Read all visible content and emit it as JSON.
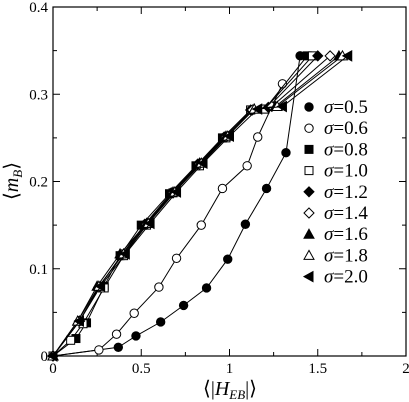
{
  "chart_data": {
    "type": "line",
    "xlabel": "⟨|H_EB|⟩",
    "ylabel": "⟨m_B⟩",
    "xlim": [
      0,
      2
    ],
    "ylim": [
      0,
      0.4
    ],
    "xticks": [
      "0",
      "0.5",
      "1",
      "1.5",
      "2"
    ],
    "yticks": [
      "0",
      "0.1",
      "0.2",
      "0.3",
      "0.4"
    ],
    "legend_position": "right",
    "series": [
      {
        "name": "σ=0.5",
        "marker": "filled-circle",
        "x": [
          0.0,
          0.37,
          0.47,
          0.61,
          0.74,
          0.87,
          0.99,
          1.09,
          1.21,
          1.32,
          1.4
        ],
        "y": [
          0.0,
          0.01,
          0.023,
          0.039,
          0.058,
          0.078,
          0.111,
          0.151,
          0.192,
          0.233,
          0.344
        ]
      },
      {
        "name": "σ=0.6",
        "marker": "open-circle",
        "x": [
          0.0,
          0.26,
          0.36,
          0.46,
          0.6,
          0.7,
          0.84,
          0.96,
          1.1,
          1.16,
          1.3
        ],
        "y": [
          0.0,
          0.007,
          0.025,
          0.049,
          0.079,
          0.112,
          0.15,
          0.192,
          0.218,
          0.251,
          0.312
        ]
      },
      {
        "name": "σ=0.8",
        "marker": "filled-square",
        "x": [
          0.0,
          0.13,
          0.19,
          0.29,
          0.38,
          0.5,
          0.66,
          0.81,
          0.96,
          1.12,
          1.2,
          1.44
        ],
        "y": [
          0.0,
          0.02,
          0.038,
          0.08,
          0.115,
          0.15,
          0.186,
          0.218,
          0.25,
          0.282,
          0.283,
          0.344
        ]
      },
      {
        "name": "σ=1.0",
        "marker": "open-square",
        "x": [
          0.0,
          0.1,
          0.17,
          0.29,
          0.4,
          0.53,
          0.68,
          0.83,
          0.98,
          1.12,
          1.2,
          1.47
        ],
        "y": [
          0.0,
          0.018,
          0.037,
          0.078,
          0.115,
          0.15,
          0.187,
          0.218,
          0.25,
          0.282,
          0.283,
          0.344
        ]
      },
      {
        "name": "σ=1.2",
        "marker": "filled-diamond",
        "x": [
          0.0,
          0.15,
          0.26,
          0.39,
          0.52,
          0.67,
          0.82,
          0.97,
          1.12,
          1.22,
          1.5
        ],
        "y": [
          0.0,
          0.04,
          0.079,
          0.116,
          0.151,
          0.187,
          0.22,
          0.251,
          0.282,
          0.285,
          0.344
        ]
      },
      {
        "name": "σ=1.4",
        "marker": "open-diamond",
        "x": [
          0.0,
          0.15,
          0.26,
          0.39,
          0.53,
          0.68,
          0.83,
          0.98,
          1.13,
          1.24,
          1.57
        ],
        "y": [
          0.0,
          0.04,
          0.079,
          0.116,
          0.151,
          0.187,
          0.22,
          0.251,
          0.282,
          0.286,
          0.344
        ]
      },
      {
        "name": "σ=1.6",
        "marker": "filled-triangle-up",
        "x": [
          0.0,
          0.14,
          0.25,
          0.38,
          0.53,
          0.68,
          0.83,
          0.98,
          1.14,
          1.26,
          1.62
        ],
        "y": [
          0.0,
          0.04,
          0.08,
          0.117,
          0.152,
          0.188,
          0.221,
          0.252,
          0.283,
          0.286,
          0.344
        ]
      },
      {
        "name": "σ=1.8",
        "marker": "open-triangle-up",
        "x": [
          0.0,
          0.14,
          0.26,
          0.4,
          0.54,
          0.69,
          0.84,
          0.99,
          1.14,
          1.27,
          1.64
        ],
        "y": [
          0.0,
          0.04,
          0.08,
          0.117,
          0.152,
          0.188,
          0.221,
          0.252,
          0.283,
          0.286,
          0.344
        ]
      },
      {
        "name": "σ=2.0",
        "marker": "filled-triangle-left",
        "x": [
          0.0,
          0.15,
          0.27,
          0.41,
          0.55,
          0.7,
          0.85,
          1.0,
          1.16,
          1.3,
          1.67
        ],
        "y": [
          0.0,
          0.04,
          0.08,
          0.117,
          0.152,
          0.188,
          0.221,
          0.252,
          0.283,
          0.286,
          0.344
        ]
      }
    ]
  }
}
